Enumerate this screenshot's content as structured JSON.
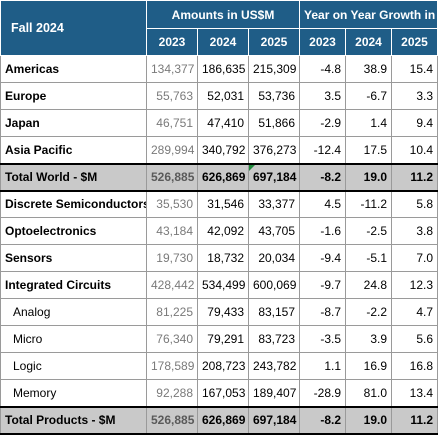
{
  "header": {
    "season": "Fall 2024",
    "amounts_title": "Amounts in US$M",
    "growth_title": "Year on Year Growth in %",
    "years": [
      "2023",
      "2024",
      "2025",
      "2023",
      "2024",
      "2025"
    ]
  },
  "rows": [
    {
      "label": "Americas",
      "v": [
        "134,377",
        "186,635",
        "215,309"
      ],
      "g": [
        "-4.8",
        "38.9",
        "15.4"
      ]
    },
    {
      "label": "Europe",
      "v": [
        "55,763",
        "52,031",
        "53,736"
      ],
      "g": [
        "3.5",
        "-6.7",
        "3.3"
      ]
    },
    {
      "label": "Japan",
      "v": [
        "46,751",
        "47,410",
        "51,866"
      ],
      "g": [
        "-2.9",
        "1.4",
        "9.4"
      ]
    },
    {
      "label": "Asia Pacific",
      "v": [
        "289,994",
        "340,792",
        "376,273"
      ],
      "g": [
        "-12.4",
        "17.5",
        "10.4"
      ]
    },
    {
      "label": "Total World - $M",
      "v": [
        "526,885",
        "626,869",
        "697,184"
      ],
      "g": [
        "-8.2",
        "19.0",
        "11.2"
      ]
    },
    {
      "label": "Discrete Semiconductors",
      "v": [
        "35,530",
        "31,546",
        "33,377"
      ],
      "g": [
        "4.5",
        "-11.2",
        "5.8"
      ]
    },
    {
      "label": "Optoelectronics",
      "v": [
        "43,184",
        "42,092",
        "43,705"
      ],
      "g": [
        "-1.6",
        "-2.5",
        "3.8"
      ]
    },
    {
      "label": "Sensors",
      "v": [
        "19,730",
        "18,732",
        "20,034"
      ],
      "g": [
        "-9.4",
        "-5.1",
        "7.0"
      ]
    },
    {
      "label": "Integrated Circuits",
      "v": [
        "428,442",
        "534,499",
        "600,069"
      ],
      "g": [
        "-9.7",
        "24.8",
        "12.3"
      ]
    },
    {
      "label": "Analog",
      "v": [
        "81,225",
        "79,433",
        "83,157"
      ],
      "g": [
        "-8.7",
        "-2.2",
        "4.7"
      ]
    },
    {
      "label": "Micro",
      "v": [
        "76,340",
        "79,291",
        "83,723"
      ],
      "g": [
        "-3.5",
        "3.9",
        "5.6"
      ]
    },
    {
      "label": "Logic",
      "v": [
        "178,589",
        "208,723",
        "243,782"
      ],
      "g": [
        "1.1",
        "16.9",
        "16.8"
      ]
    },
    {
      "label": "Memory",
      "v": [
        "92,288",
        "167,053",
        "189,407"
      ],
      "g": [
        "-28.9",
        "81.0",
        "13.4"
      ]
    },
    {
      "label": "Total Products - $M",
      "v": [
        "526,885",
        "626,869",
        "697,184"
      ],
      "g": [
        "-8.2",
        "19.0",
        "11.2"
      ]
    }
  ],
  "colors": {
    "header_bg": "#1f5d87",
    "total_bg": "#c9c9c9",
    "prior_year_text": "#7a7a7a"
  }
}
